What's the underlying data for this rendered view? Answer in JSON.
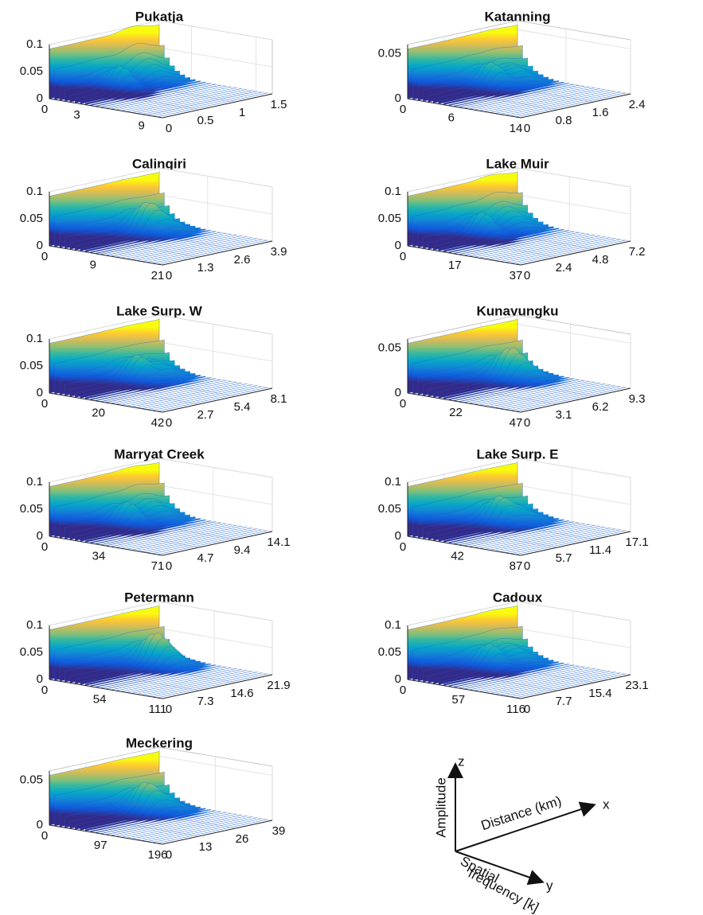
{
  "chart_data": [
    {
      "type": "surface",
      "title": "Pukatja",
      "xticks": [
        0,
        0.5,
        1,
        1.5
      ],
      "xlim": [
        0,
        1.5
      ],
      "yticks": [
        0,
        3,
        9
      ],
      "ylim": [
        0,
        10.5
      ],
      "zticks": [
        0,
        0.05,
        0.1
      ],
      "zlim": [
        0,
        0.1
      ]
    },
    {
      "type": "surface",
      "title": "Katanning",
      "xticks": [
        0,
        0.8,
        1.6,
        2.4
      ],
      "xlim": [
        0,
        2.4
      ],
      "yticks": [
        0,
        6,
        14
      ],
      "ylim": [
        0,
        14
      ],
      "zticks": [
        0,
        0.05
      ],
      "zlim": [
        0,
        0.06
      ]
    },
    {
      "type": "surface",
      "title": "Calingiri",
      "xticks": [
        0,
        1.3,
        2.6,
        3.9
      ],
      "xlim": [
        0,
        3.9
      ],
      "yticks": [
        0,
        9,
        21
      ],
      "ylim": [
        0,
        21
      ],
      "zticks": [
        0,
        0.05,
        0.1
      ],
      "zlim": [
        0,
        0.1
      ]
    },
    {
      "type": "surface",
      "title": "Lake Muir",
      "xticks": [
        0,
        2.4,
        4.8,
        7.2
      ],
      "xlim": [
        0,
        7.2
      ],
      "yticks": [
        0,
        17,
        37
      ],
      "ylim": [
        0,
        37
      ],
      "zticks": [
        0,
        0.05,
        0.1
      ],
      "zlim": [
        0,
        0.1
      ]
    },
    {
      "type": "surface",
      "title": "Lake Surp. W",
      "xticks": [
        0,
        2.7,
        5.4,
        8.1
      ],
      "xlim": [
        0,
        8.1
      ],
      "yticks": [
        0,
        20,
        42
      ],
      "ylim": [
        0,
        42
      ],
      "zticks": [
        0,
        0.05,
        0.1
      ],
      "zlim": [
        0,
        0.1
      ]
    },
    {
      "type": "surface",
      "title": "Kunayungku",
      "xticks": [
        0,
        3.1,
        6.2,
        9.3
      ],
      "xlim": [
        0,
        9.3
      ],
      "yticks": [
        0,
        22,
        47
      ],
      "ylim": [
        0,
        47
      ],
      "zticks": [
        0,
        0.05
      ],
      "zlim": [
        0,
        0.06
      ]
    },
    {
      "type": "surface",
      "title": "Marryat Creek",
      "xticks": [
        0,
        4.7,
        9.4,
        14.1
      ],
      "xlim": [
        0,
        14.1
      ],
      "yticks": [
        0,
        34,
        71
      ],
      "ylim": [
        0,
        71
      ],
      "zticks": [
        0,
        0.05,
        0.1
      ],
      "zlim": [
        0,
        0.1
      ]
    },
    {
      "type": "surface",
      "title": "Lake Surp. E",
      "xticks": [
        0,
        5.7,
        11.4,
        17.1
      ],
      "xlim": [
        0,
        17.1
      ],
      "yticks": [
        0,
        42,
        87
      ],
      "ylim": [
        0,
        87
      ],
      "zticks": [
        0,
        0.05,
        0.1
      ],
      "zlim": [
        0,
        0.1
      ]
    },
    {
      "type": "surface",
      "title": "Petermann",
      "xticks": [
        0,
        7.3,
        14.6,
        21.9
      ],
      "xlim": [
        0,
        21.9
      ],
      "yticks": [
        0,
        54,
        111
      ],
      "ylim": [
        0,
        111
      ],
      "zticks": [
        0,
        0.05,
        0.1
      ],
      "zlim": [
        0,
        0.1
      ]
    },
    {
      "type": "surface",
      "title": "Cadoux",
      "xticks": [
        0,
        7.7,
        15.4,
        23.1
      ],
      "xlim": [
        0,
        23.1
      ],
      "yticks": [
        0,
        57,
        116
      ],
      "ylim": [
        0,
        116
      ],
      "zticks": [
        0,
        0.05,
        0.1
      ],
      "zlim": [
        0,
        0.1
      ]
    },
    {
      "type": "surface",
      "title": "Meckering",
      "xticks": [
        0,
        13,
        26,
        39
      ],
      "xlim": [
        0,
        39
      ],
      "yticks": [
        0,
        97,
        196
      ],
      "ylim": [
        0,
        196
      ],
      "zticks": [
        0,
        0.05
      ],
      "zlim": [
        0,
        0.06
      ]
    }
  ],
  "colormap": [
    "#352a87",
    "#0f5cdd",
    "#1481d6",
    "#06a4ca",
    "#2eb7a4",
    "#87bf77",
    "#d1bb59",
    "#fec832",
    "#f9fb0e"
  ],
  "axes_key": {
    "z_label": "z",
    "x_label": "x",
    "y_label": "y",
    "z_name": "Amplitude",
    "x_name": "Distance (km)",
    "y_name": [
      "Spatial",
      "frequency [k]"
    ]
  }
}
